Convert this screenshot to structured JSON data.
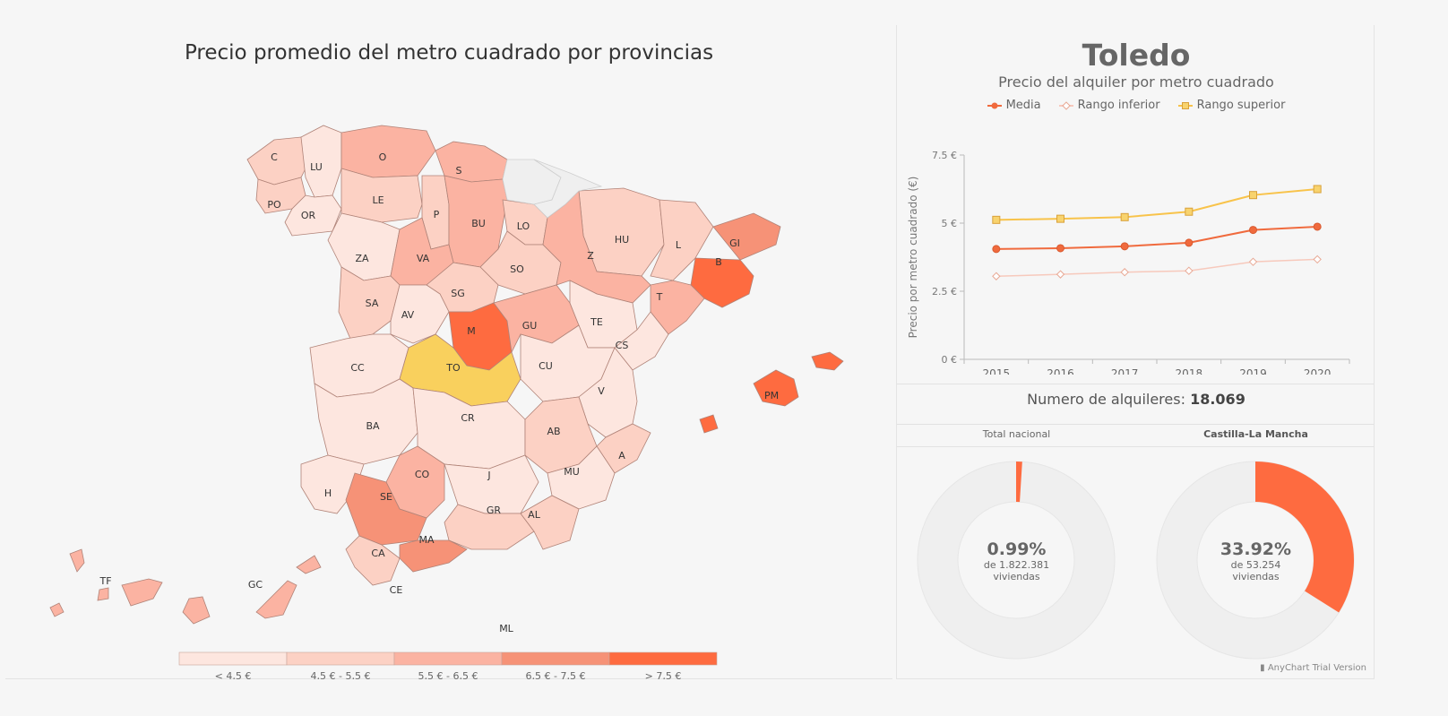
{
  "map": {
    "title": "Precio promedio del metro cuadrado por provincias",
    "legend": [
      {
        "label": "< 4,5 €",
        "color": "#fde6df"
      },
      {
        "label": "4,5 € - 5,5 €",
        "color": "#fcd1c4"
      },
      {
        "label": "5,5 € - 6,5 €",
        "color": "#fbb3a2"
      },
      {
        "label": "6,5 € - 7,5 €",
        "color": "#f69277"
      },
      {
        "label": "> 7,5 €",
        "color": "#fe6b40"
      }
    ],
    "selected_color": "#f9d05d",
    "no_data_color": "#efefef",
    "provinces": [
      "C",
      "LU",
      "O",
      "S",
      "PO",
      "OR",
      "LE",
      "P",
      "BU",
      "LO",
      "HU",
      "L",
      "GI",
      "ZA",
      "VA",
      "SO",
      "Z",
      "B",
      "SG",
      "SA",
      "AV",
      "M",
      "GU",
      "TE",
      "T",
      "CS",
      "CC",
      "TO",
      "CU",
      "V",
      "PM",
      "BA",
      "CR",
      "AB",
      "A",
      "CO",
      "J",
      "MU",
      "H",
      "SE",
      "GR",
      "AL",
      "CA",
      "MA",
      "TF",
      "GC",
      "CE",
      "ML"
    ]
  },
  "detail": {
    "city": "Toledo",
    "subtitle": "Precio del alquiler por metro cuadrado",
    "rentals_label": "Numero de alquileres:",
    "rentals_value": "18.069",
    "credit": "AnyChart Trial Version"
  },
  "chart_data": {
    "type": "line",
    "title": "Toledo",
    "subtitle": "Precio del alquiler por metro cuadrado",
    "ylabel": "Precio por metro cuadrado (€)",
    "x": [
      "2015",
      "2016",
      "2017",
      "2018",
      "2019",
      "2020"
    ],
    "ylim": [
      0,
      7.5
    ],
    "yticks": [
      "0 €",
      "2.5 €",
      "5 €",
      "7.5 €"
    ],
    "legend_position": "top",
    "series": [
      {
        "name": "Media",
        "color": "#f06a3d",
        "values": [
          4.05,
          4.08,
          4.15,
          4.28,
          4.75,
          4.87
        ]
      },
      {
        "name": "Rango inferior",
        "color": "#f7c9bc",
        "values": [
          3.05,
          3.12,
          3.2,
          3.25,
          3.58,
          3.67
        ]
      },
      {
        "name": "Rango superior",
        "color": "#f8c34a",
        "values": [
          5.12,
          5.16,
          5.22,
          5.42,
          6.03,
          6.25
        ]
      }
    ]
  },
  "donuts": [
    {
      "title": "Total nacional",
      "percent": "0.99%",
      "value": 0.99,
      "of_label": "de 1.822.381",
      "unit": "viviendas"
    },
    {
      "title": "Castilla-La Mancha",
      "percent": "33.92%",
      "value": 33.92,
      "of_label": "de 53.254",
      "unit": "viviendas"
    }
  ],
  "colors": {
    "accent": "#fe6b40",
    "donut_track": "#efefef"
  }
}
